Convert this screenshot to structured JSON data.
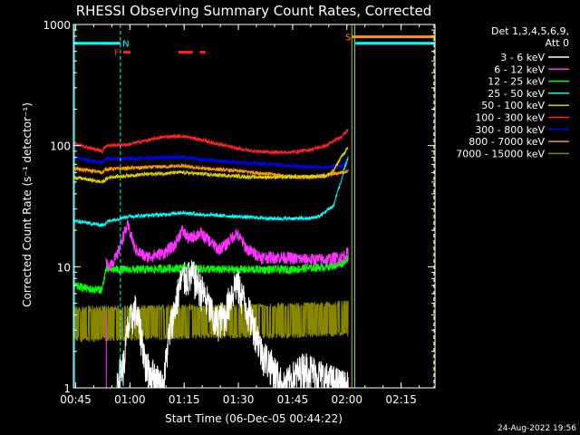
{
  "chart_data": {
    "type": "line",
    "title": "RHESSI Observing Summary Count Rates, Corrected",
    "xlabel": "Start Time (06-Dec-05 00:44:22)",
    "ylabel": "Corrected Count Rate (s⁻¹ detector⁻¹)",
    "yscale": "log",
    "ylim": [
      1,
      1000
    ],
    "xlim_minutes": [
      0.0,
      100.0
    ],
    "x_unit": "minutes after 00:44:22",
    "x_tick_labels": [
      "00:45",
      "01:00",
      "01:15",
      "01:30",
      "01:45",
      "02:00",
      "02:15"
    ],
    "x_tick_minutes": [
      0.63,
      15.63,
      30.63,
      45.63,
      60.63,
      75.63,
      90.63
    ],
    "y_tick_labels": [
      "1",
      "10",
      "100",
      "1000"
    ],
    "y_tick_values": [
      1,
      10,
      100,
      1000
    ],
    "legend_header": [
      "Det 1,3,4,5,6,9,",
      "Att 0"
    ],
    "legend_position": "outside-right",
    "series": [
      {
        "name": "3 - 6 keV",
        "color": "#ffffff",
        "style": "noisy",
        "x": [
          12,
          14,
          15,
          17,
          20,
          25,
          28,
          30,
          33,
          36,
          39,
          42,
          45,
          48,
          52,
          58,
          64,
          70,
          76
        ],
        "y": [
          1.1,
          1.6,
          3.0,
          4.5,
          1.5,
          1.0,
          4.5,
          8.0,
          8.5,
          6.0,
          3.5,
          4.0,
          7.5,
          4.5,
          2.0,
          1.0,
          1.5,
          1.2,
          1.0
        ]
      },
      {
        "name": "6 - 12 keV",
        "color": "#ff33ff",
        "style": "noisy",
        "x": [
          9,
          10,
          12,
          15,
          17,
          20,
          25,
          28,
          30,
          32,
          35,
          38,
          40,
          42,
          45,
          48,
          52,
          58,
          64,
          70,
          74,
          76
        ],
        "y": [
          10.5,
          10.5,
          12,
          22,
          14,
          12,
          13,
          15,
          20,
          17,
          19,
          16,
          14,
          15,
          19,
          14,
          12,
          12,
          11.5,
          11.5,
          12,
          13
        ]
      },
      {
        "name": "12 - 25 keV",
        "color": "#00ff00",
        "style": "noisy",
        "x": [
          0,
          5,
          8,
          9,
          12,
          20,
          30,
          40,
          50,
          60,
          70,
          74,
          76
        ],
        "y": [
          7,
          6.5,
          6.5,
          9.5,
          9.5,
          9.5,
          9.8,
          9.5,
          9.5,
          9.5,
          10,
          10.5,
          12
        ]
      },
      {
        "name": "25 - 50 keV",
        "color": "#00ffff",
        "style": "noisy",
        "x": [
          0,
          8,
          10,
          15,
          25,
          30,
          35,
          45,
          55,
          65,
          68,
          72,
          74,
          76
        ],
        "y": [
          24,
          22,
          24,
          26,
          27,
          28,
          27,
          26,
          25,
          25,
          26,
          32,
          50,
          80
        ]
      },
      {
        "name": "50 - 100 keV",
        "color": "#ddcc00",
        "style": "noisy",
        "x": [
          0,
          8,
          10,
          20,
          30,
          40,
          50,
          60,
          70,
          72,
          74,
          76
        ],
        "y": [
          55,
          50,
          55,
          58,
          60,
          57,
          55,
          55,
          56,
          62,
          80,
          95
        ]
      },
      {
        "name": "100 - 300 keV",
        "color": "#ff2222",
        "style": "noisy",
        "x": [
          0,
          5,
          8,
          9,
          15,
          20,
          25,
          30,
          35,
          40,
          45,
          50,
          55,
          60,
          65,
          70,
          74,
          76
        ],
        "y": [
          105,
          95,
          90,
          100,
          102,
          110,
          118,
          120,
          112,
          103,
          95,
          90,
          88,
          88,
          92,
          100,
          118,
          135
        ]
      },
      {
        "name": "300 - 800 keV",
        "color": "#0000ff",
        "style": "noisy",
        "x": [
          0,
          8,
          9,
          15,
          25,
          30,
          35,
          45,
          55,
          60,
          65,
          70,
          74,
          76
        ],
        "y": [
          80,
          72,
          78,
          78,
          80,
          80,
          77,
          73,
          70,
          68,
          67,
          66,
          68,
          72
        ]
      },
      {
        "name": "800 - 7000 keV",
        "color": "#ff9900",
        "style": "noisy",
        "x": [
          0,
          8,
          9,
          15,
          25,
          30,
          35,
          45,
          55,
          60,
          65,
          70,
          74,
          76
        ],
        "y": [
          65,
          60,
          64,
          65,
          67,
          68,
          65,
          62,
          58,
          55,
          55,
          57,
          60,
          62
        ]
      },
      {
        "name": "7000 - 15000 keV",
        "color": "#888800",
        "style": "band",
        "x": [
          0,
          20,
          40,
          60,
          76
        ],
        "y_low": [
          2.5,
          2.6,
          2.7,
          2.7,
          2.8
        ],
        "y_high": [
          4.5,
          4.6,
          4.7,
          4.8,
          5.0
        ]
      }
    ],
    "attenuator_line": {
      "label": "",
      "color": "#00ffff",
      "x": [
        0,
        0,
        0.3,
        0.3
      ],
      "y": [
        1,
        700,
        700,
        1
      ]
    },
    "annotations": [
      {
        "text": "N",
        "color": "#00ffff",
        "x": 13,
        "type": "night-start",
        "bar_y": 700,
        "bar_x": [
          0,
          13
        ]
      },
      {
        "text": "F",
        "color": "#ff2222",
        "x": 13.5,
        "type": "flare-flag",
        "bar_y": 590
      },
      {
        "text": "S",
        "color": "#ff9900",
        "x": 77.5,
        "type": "saa-start",
        "bar_y": 790,
        "bar_x": [
          77,
          100
        ]
      }
    ],
    "flare_bars_minutes": [
      [
        13.8,
        15.8
      ],
      [
        29.0,
        33.0
      ],
      [
        35.0,
        36.5
      ]
    ],
    "cyan_vertical_minutes": [
      0.3,
      13.0,
      77.8,
      99.8
    ],
    "orange_vertical_minutes": [
      77.0,
      99.6
    ],
    "magenta_vertical_minute": 9.1
  },
  "footer": {
    "date_stamp": "24-Aug-2022 19:56"
  }
}
